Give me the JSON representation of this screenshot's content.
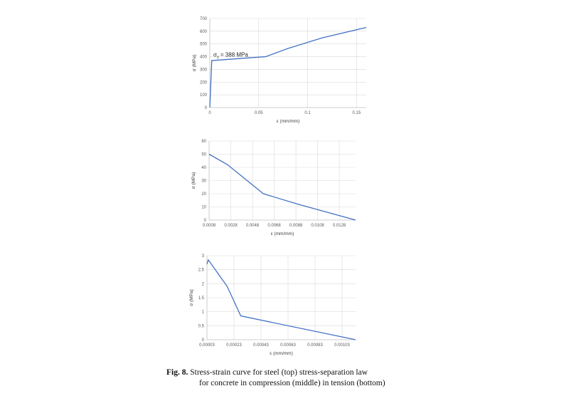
{
  "chart_data": [
    {
      "type": "line",
      "xlabel": "ε (mm/mm)",
      "ylabel": "σ (MPa)",
      "xlim": [
        0,
        0.16
      ],
      "ylim": [
        0,
        700
      ],
      "xticks": [
        "0",
        "0.05",
        "0.1",
        "0.15"
      ],
      "yticks": [
        "0",
        "100",
        "200",
        "300",
        "400",
        "500",
        "600",
        "700"
      ],
      "annotation": {
        "symbol": "σ",
        "subscript": "y",
        "text": " = 388 MPa"
      },
      "grid": true,
      "series": [
        {
          "x": [
            0,
            0.002,
            0.003,
            0.057,
            0.08,
            0.115,
            0.16
          ],
          "y": [
            0,
            370,
            370,
            400,
            465,
            548,
            630
          ]
        }
      ]
    },
    {
      "type": "line",
      "xlabel": "ε (mm/mm)",
      "ylabel": "σ (MPa)",
      "xlim": [
        0.0008,
        0.0143
      ],
      "ylim": [
        0,
        60
      ],
      "xticks": [
        "0.0008",
        "0.0028",
        "0.0048",
        "0.0068",
        "0.0088",
        "0.0108",
        "0.0128"
      ],
      "yticks": [
        "0",
        "10",
        "20",
        "30",
        "40",
        "50",
        "60"
      ],
      "grid": true,
      "series": [
        {
          "x": [
            0.0008,
            0.0025,
            0.004,
            0.0058,
            0.009,
            0.0143
          ],
          "y": [
            50,
            42,
            32,
            20,
            12,
            0
          ]
        }
      ]
    },
    {
      "type": "line",
      "xlabel": "ε (mm/mm)",
      "ylabel": "σ (MPa)",
      "xlim": [
        3e-05,
        0.00113
      ],
      "ylim": [
        0,
        3
      ],
      "xticks": [
        "0.00003",
        "0.00023",
        "0.00043",
        "0.00063",
        "0.00083",
        "0.00103"
      ],
      "yticks": [
        "0",
        "0.5",
        "1",
        "1.5",
        "2",
        "2.5",
        "3"
      ],
      "grid": true,
      "series": [
        {
          "x": [
            3e-05,
            4e-05,
            0.00018,
            0.00028,
            0.00113
          ],
          "y": [
            2.7,
            2.85,
            1.9,
            0.85,
            0
          ]
        }
      ]
    }
  ],
  "caption": {
    "figure": "Fig. 8.",
    "line1": " Stress-strain curve for steel (top) stress-separation law",
    "line2": "for concrete in compression (middle) in tension (bottom)"
  }
}
